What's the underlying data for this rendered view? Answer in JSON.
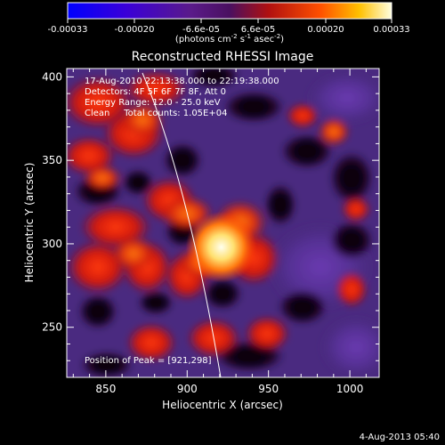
{
  "colorbar": {
    "ticks": [
      "-0.00033",
      "-0.00020",
      "-6.6e-05",
      "6.6e-05",
      "0.00020",
      "0.00033"
    ],
    "unit_main": "(photons cm",
    "unit_exp1": "-2",
    "unit_mid": " s",
    "unit_exp2": "-1",
    "unit_tail": " asec",
    "unit_exp3": "-2",
    "unit_close": ")"
  },
  "image": {
    "title": "Reconstructed RHESSI Image",
    "info": [
      "17-Aug-2010 22:13:38.000 to 22:19:38.000",
      "Detectors: 4F 5F 6F 7F 8F, Att 0",
      "Energy Range: 12.0 - 25.0 keV",
      "Clean     Total counts: 1.05E+04"
    ],
    "peak_label": "Position of Peak = [921,298]",
    "peak": {
      "x": 921,
      "y": 298
    }
  },
  "axes": {
    "xlabel": "Heliocentric X (arcsec)",
    "ylabel": "Heliocentric Y (arcsec)",
    "xlim": [
      826,
      1018
    ],
    "ylim": [
      220,
      405
    ],
    "xticks": [
      850,
      900,
      950,
      1000
    ],
    "yticks": [
      250,
      300,
      350,
      400
    ]
  },
  "footer": {
    "timestamp": "4-Aug-2013 05:40"
  }
}
